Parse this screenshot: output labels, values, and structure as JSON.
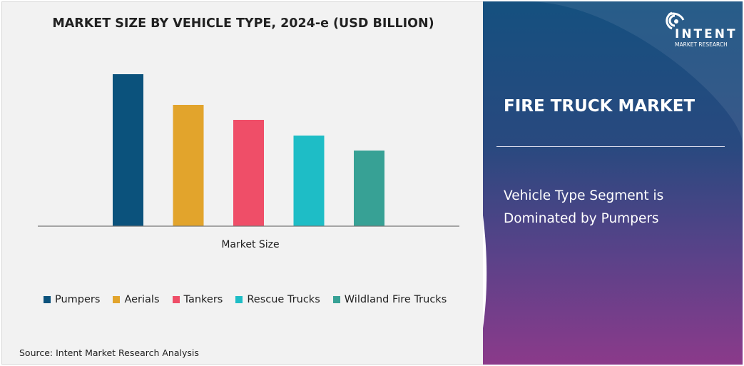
{
  "chart_data": {
    "type": "bar",
    "title": "MARKET SIZE BY VEHICLE TYPE, 2024-e (USD BILLION)",
    "xlabel": "Market Size",
    "ylabel": "",
    "categories": [
      "Pumpers",
      "Aerials",
      "Tankers",
      "Rescue Trucks",
      "Wildland Fire Trucks"
    ],
    "values": [
      213,
      170,
      149,
      127,
      106
    ],
    "ylim": [
      0,
      213
    ],
    "colors": [
      "#0b527c",
      "#e2a42c",
      "#ef4e68",
      "#1ebdc6",
      "#37a195"
    ],
    "legend_position": "bottom",
    "grid": false
  },
  "source": "Source: Intent Market Research Analysis",
  "panel": {
    "title": "FIRE TRUCK MARKET",
    "subtitle_line1": "Vehicle Type Segment is",
    "subtitle_line2": "Dominated by Pumpers"
  },
  "logo": {
    "name": "INTENT",
    "tagline": "MARKET RESEARCH",
    "tm": "™"
  }
}
